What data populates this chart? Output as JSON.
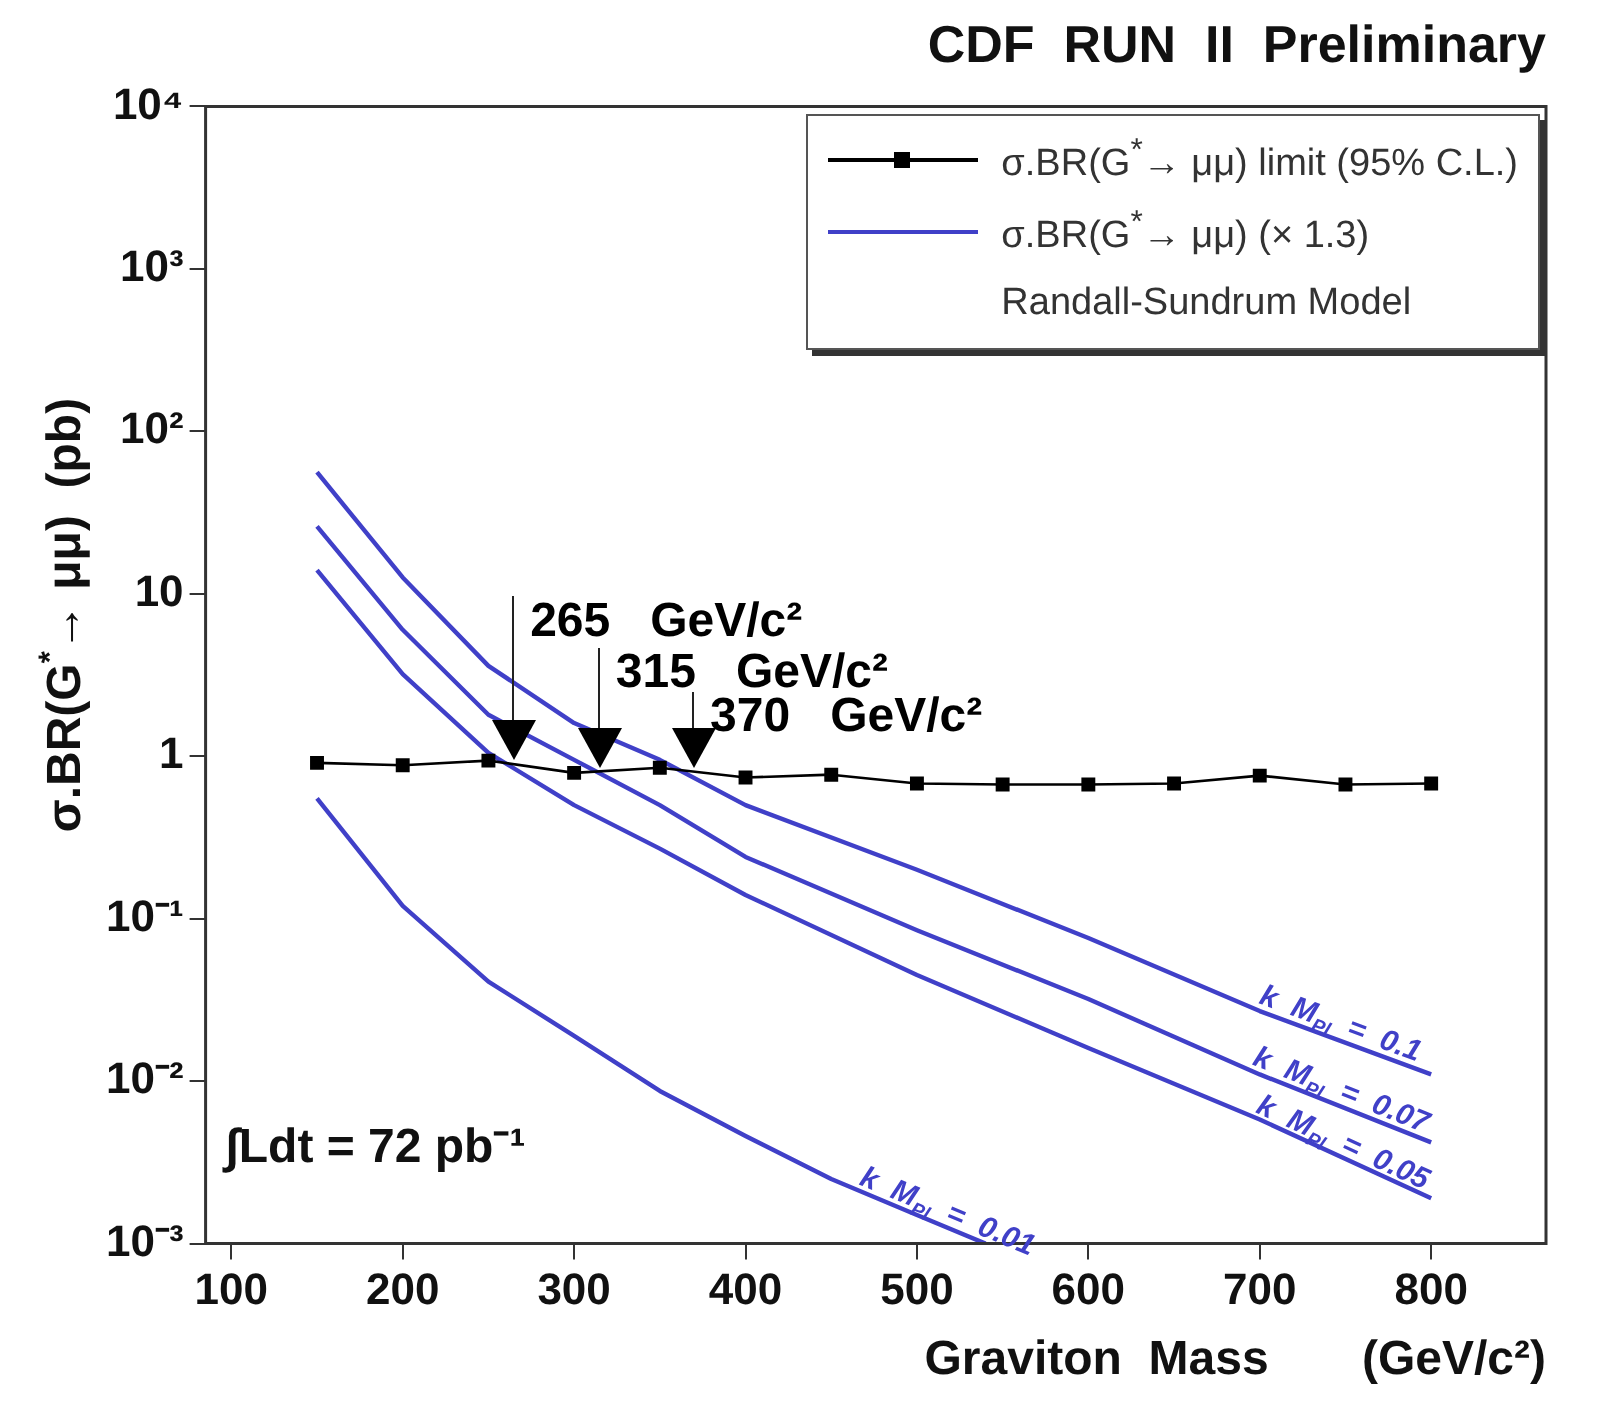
{
  "chart_data": {
    "type": "line",
    "title": "CDF  RUN  II  Preliminary",
    "xlabel": "Graviton  Mass       (GeV/c²)",
    "ylabel": "σ.BR(G$^{*}$→ μμ)  (pb)",
    "legend_title": "Randall-Sundrum Model",
    "log": "y",
    "legend": "top right",
    "grid": false,
    "xlim": [
      85,
      867
    ],
    "xticks": [
      100,
      200,
      300,
      400,
      500,
      600,
      700,
      800
    ],
    "ylim": [
      0.001,
      10000
    ],
    "yticks": [
      {
        "value": 0.001,
        "label": "10⁻³"
      },
      {
        "value": 0.01,
        "label": "10⁻²"
      },
      {
        "value": 0.1,
        "label": "10⁻¹"
      },
      1,
      10,
      {
        "value": 100,
        "label": "10²"
      },
      {
        "value": 1000,
        "label": "10³"
      },
      {
        "value": 10000,
        "label": "10⁴"
      }
    ],
    "series": [
      {
        "name": "σ.BR(G$^{*}$→ μμ) limit (95% C.L.)",
        "color": "#000000",
        "marker": "square",
        "x": [
          150,
          200,
          250,
          300,
          350,
          400,
          450,
          500,
          550,
          600,
          650,
          700,
          750,
          800
        ],
        "values": [
          0.91,
          0.88,
          0.94,
          0.79,
          0.85,
          0.74,
          0.77,
          0.68,
          0.67,
          0.67,
          0.68,
          0.76,
          0.67,
          0.68
        ]
      },
      {
        "name": "k M$_{Pl}$ = 0.1",
        "color": "#4040c8",
        "marker": "none",
        "x": [
          150,
          200,
          250,
          300,
          350,
          400,
          500,
          600,
          700,
          800
        ],
        "values": [
          56,
          12.6,
          3.6,
          1.6,
          0.95,
          0.5,
          0.2,
          0.076,
          0.027,
          0.011
        ]
      },
      {
        "name": "k M$_{Pl}$ = 0.07",
        "color": "#4040c8",
        "marker": "none",
        "x": [
          150,
          200,
          250,
          300,
          350,
          400,
          500,
          600,
          700,
          800
        ],
        "values": [
          26,
          6,
          1.8,
          0.95,
          0.5,
          0.24,
          0.085,
          0.032,
          0.011,
          0.0042
        ]
      },
      {
        "name": "k M$_{Pl}$ = 0.05",
        "color": "#4040c8",
        "marker": "none",
        "x": [
          150,
          200,
          250,
          300,
          350,
          400,
          500,
          600,
          700,
          800
        ],
        "values": [
          14,
          3.2,
          1.05,
          0.5,
          0.27,
          0.14,
          0.045,
          0.016,
          0.0058,
          0.0019
        ]
      },
      {
        "name": "k M$_{Pl}$ = 0.01",
        "color": "#4040c8",
        "marker": "none",
        "x": [
          150,
          200,
          250,
          300,
          350,
          400,
          450,
          500,
          540
        ],
        "values": [
          0.55,
          0.12,
          0.041,
          0.019,
          0.0087,
          0.0046,
          0.0025,
          0.0015,
          0.001
        ]
      }
    ],
    "annotations": [
      "σ.BR(G$^{*}$→ μμ) (× 1.3)",
      "∫Ldt = 72 pb⁻¹",
      {
        "text": "265 GeV/c²",
        "x": 265,
        "y": 0.9
      },
      {
        "text": "315 GeV/c²",
        "x": 315,
        "y": 0.81
      },
      {
        "text": "370 GeV/c²",
        "x": 370,
        "y": 0.81
      }
    ]
  }
}
